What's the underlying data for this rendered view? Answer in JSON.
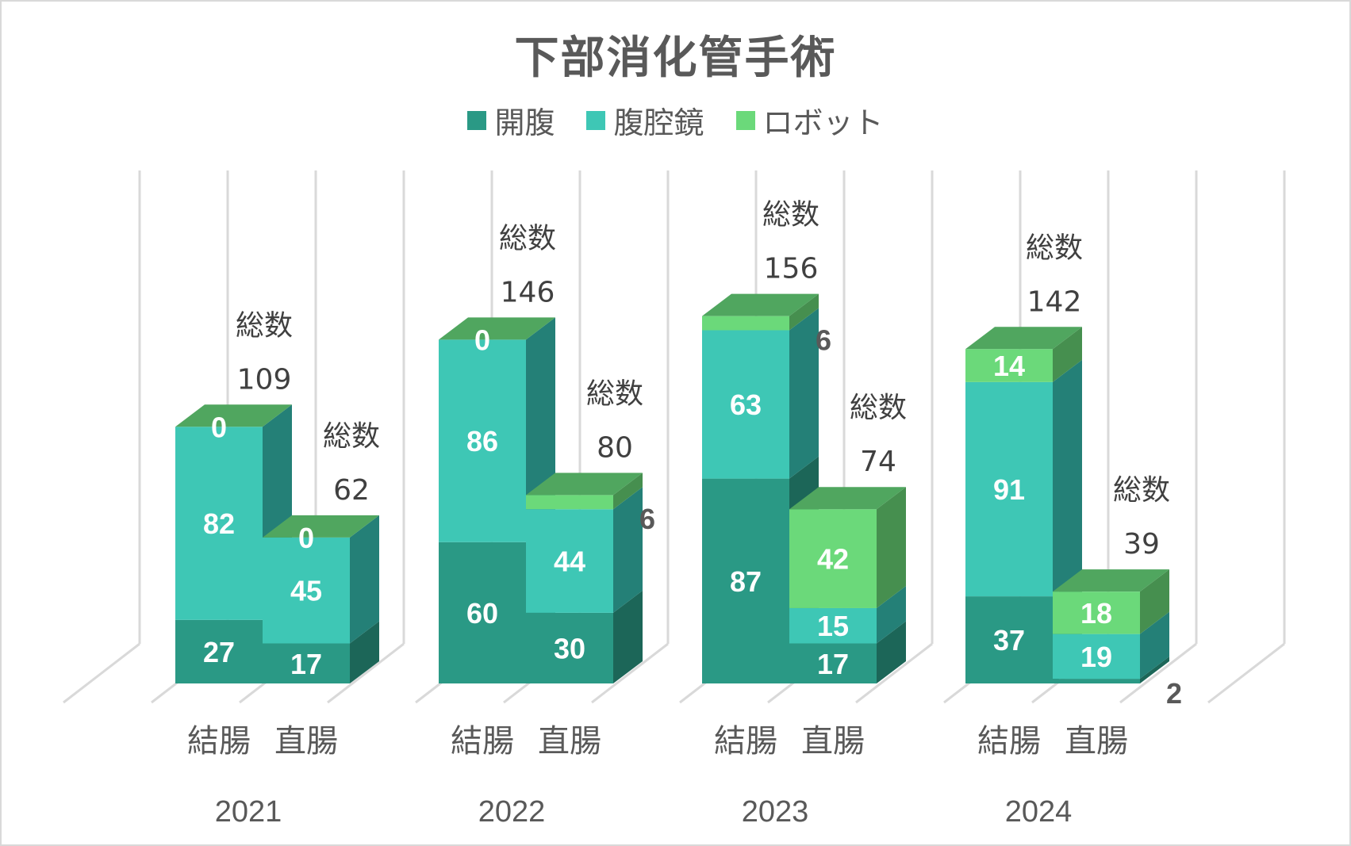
{
  "chart_data": {
    "type": "bar",
    "subtype": "3d-stacked-column",
    "title": "下部消化管手術",
    "legend_position": "top",
    "series_names": [
      "開腹",
      "腹腔鏡",
      "ロボット"
    ],
    "colors": {
      "開腹": "#2a9985",
      "腹腔鏡": "#3ec7b5",
      "ロボット": "#6bd97a",
      "top_face": "#50a65f",
      "top_face_side": "#468f4f",
      "side_開腹": "#1c6658",
      "side_腹腔鏡": "#248077",
      "side_ロボット": "#468f4f",
      "gridline": "#d9d9d9"
    },
    "total_label": "総数",
    "groups": [
      {
        "year": "2021",
        "bars": [
          {
            "category": "結腸",
            "values": {
              "開腹": 27,
              "腹腔鏡": 82,
              "ロボット": 0
            },
            "total": 109
          },
          {
            "category": "直腸",
            "values": {
              "開腹": 17,
              "腹腔鏡": 45,
              "ロボット": 0
            },
            "total": 62
          }
        ]
      },
      {
        "year": "2022",
        "bars": [
          {
            "category": "結腸",
            "values": {
              "開腹": 60,
              "腹腔鏡": 86,
              "ロボット": 0
            },
            "total": 146
          },
          {
            "category": "直腸",
            "values": {
              "開腹": 30,
              "腹腔鏡": 44,
              "ロボット": 6
            },
            "total": 80
          }
        ]
      },
      {
        "year": "2023",
        "bars": [
          {
            "category": "結腸",
            "values": {
              "開腹": 87,
              "腹腔鏡": 63,
              "ロボット": 6
            },
            "total": 156
          },
          {
            "category": "直腸",
            "values": {
              "開腹": 17,
              "腹腔鏡": 15,
              "ロボット": 42
            },
            "total": 74
          }
        ]
      },
      {
        "year": "2024",
        "bars": [
          {
            "category": "結腸",
            "values": {
              "開腹": 37,
              "腹腔鏡": 91,
              "ロボット": 14
            },
            "total": 142
          },
          {
            "category": "直腸",
            "values": {
              "開腹": 2,
              "腹腔鏡": 19,
              "ロボット": 18
            },
            "total": 39
          }
        ]
      }
    ],
    "ylim": [
      0,
      170
    ],
    "grid": true,
    "xlabel": "",
    "ylabel": ""
  }
}
